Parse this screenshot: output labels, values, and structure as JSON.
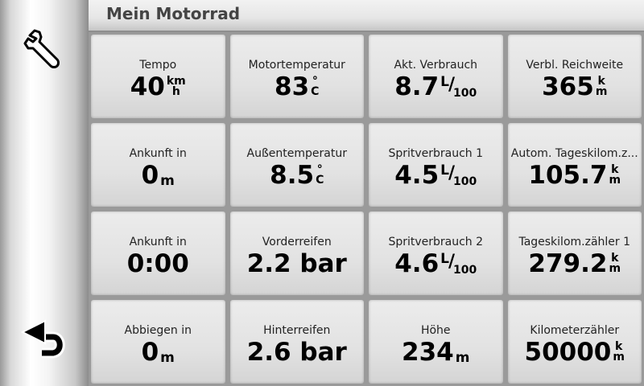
{
  "header": {
    "title": "Mein Motorrad"
  },
  "sidebar": {
    "settings_icon": "wrench-icon",
    "back_icon": "back-arrow-icon"
  },
  "fields": [
    {
      "label": "Tempo",
      "value": "40",
      "unit_type": "stack",
      "unit_top": "km",
      "unit_bottom": "h"
    },
    {
      "label": "Motortemperatur",
      "value": "83",
      "unit_type": "stack",
      "unit_top": "°",
      "unit_bottom": "C"
    },
    {
      "label": "Akt. Verbrauch",
      "value": "8.7",
      "unit_type": "frac",
      "unit_top": "L",
      "unit_sep": "/",
      "unit_bottom": "100"
    },
    {
      "label": "Verbl. Reichweite",
      "value": "365",
      "unit_type": "stack",
      "unit_top": "k",
      "unit_bottom": "m"
    },
    {
      "label": "Ankunft in",
      "value": "0",
      "unit_type": "low",
      "unit": "m"
    },
    {
      "label": "Außentemperatur",
      "value": "8.5",
      "unit_type": "stack",
      "unit_top": "°",
      "unit_bottom": "C"
    },
    {
      "label": "Spritverbrauch 1",
      "value": "4.5",
      "unit_type": "frac",
      "unit_top": "L",
      "unit_sep": "/",
      "unit_bottom": "100"
    },
    {
      "label": "Autom. Tageskilom.z...",
      "value": "105.7",
      "unit_type": "stack",
      "unit_top": "k",
      "unit_bottom": "m"
    },
    {
      "label": "Ankunft in",
      "value": "0:00",
      "unit_type": "none"
    },
    {
      "label": "Vorderreifen",
      "value": "2.2",
      "unit_type": "inline",
      "unit": " bar"
    },
    {
      "label": "Spritverbrauch 2",
      "value": "4.6",
      "unit_type": "frac",
      "unit_top": "L",
      "unit_sep": "/",
      "unit_bottom": "100"
    },
    {
      "label": "Tageskilom.zähler 1",
      "value": "279.2",
      "unit_type": "stack",
      "unit_top": "k",
      "unit_bottom": "m"
    },
    {
      "label": "Abbiegen in",
      "value": "0",
      "unit_type": "low",
      "unit": "m"
    },
    {
      "label": "Hinterreifen",
      "value": "2.6",
      "unit_type": "inline",
      "unit": " bar"
    },
    {
      "label": "Höhe",
      "value": "234",
      "unit_type": "low",
      "unit": "m"
    },
    {
      "label": "Kilometerzähler",
      "value": "50000",
      "unit_type": "stack",
      "unit_top": "k",
      "unit_bottom": "m"
    }
  ]
}
